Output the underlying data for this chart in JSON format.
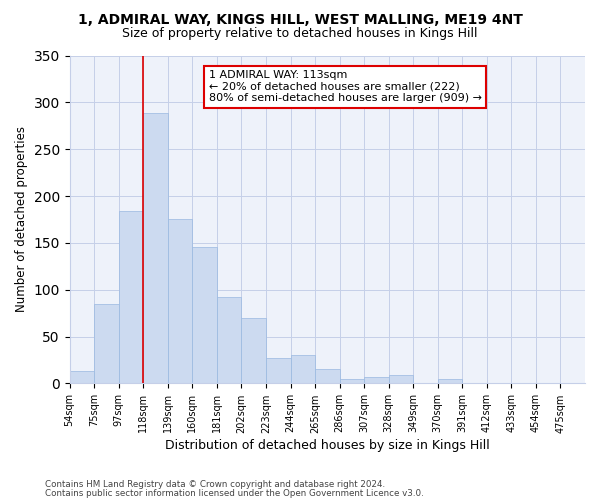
{
  "title": "1, ADMIRAL WAY, KINGS HILL, WEST MALLING, ME19 4NT",
  "subtitle": "Size of property relative to detached houses in Kings Hill",
  "xlabel": "Distribution of detached houses by size in Kings Hill",
  "ylabel": "Number of detached properties",
  "categories": [
    "54sqm",
    "75sqm",
    "97sqm",
    "118sqm",
    "139sqm",
    "160sqm",
    "181sqm",
    "202sqm",
    "223sqm",
    "244sqm",
    "265sqm",
    "286sqm",
    "307sqm",
    "328sqm",
    "349sqm",
    "370sqm",
    "391sqm",
    "412sqm",
    "433sqm",
    "454sqm",
    "475sqm"
  ],
  "values": [
    13,
    85,
    184,
    289,
    175,
    146,
    92,
    70,
    27,
    30,
    15,
    5,
    7,
    9,
    0,
    5,
    0,
    0,
    0,
    0,
    0
  ],
  "bar_color": "#ccdaf0",
  "bar_edge_color": "#99b8e0",
  "vline_color": "#dd0000",
  "annotation_text": "1 ADMIRAL WAY: 113sqm\n← 20% of detached houses are smaller (222)\n80% of semi-detached houses are larger (909) →",
  "bg_color": "#eef2fa",
  "ylim": [
    0,
    350
  ],
  "title_fontsize": 10,
  "subtitle_fontsize": 9,
  "xlabel_fontsize": 9,
  "ylabel_fontsize": 8.5,
  "footer1": "Contains HM Land Registry data © Crown copyright and database right 2024.",
  "footer2": "Contains public sector information licensed under the Open Government Licence v3.0."
}
